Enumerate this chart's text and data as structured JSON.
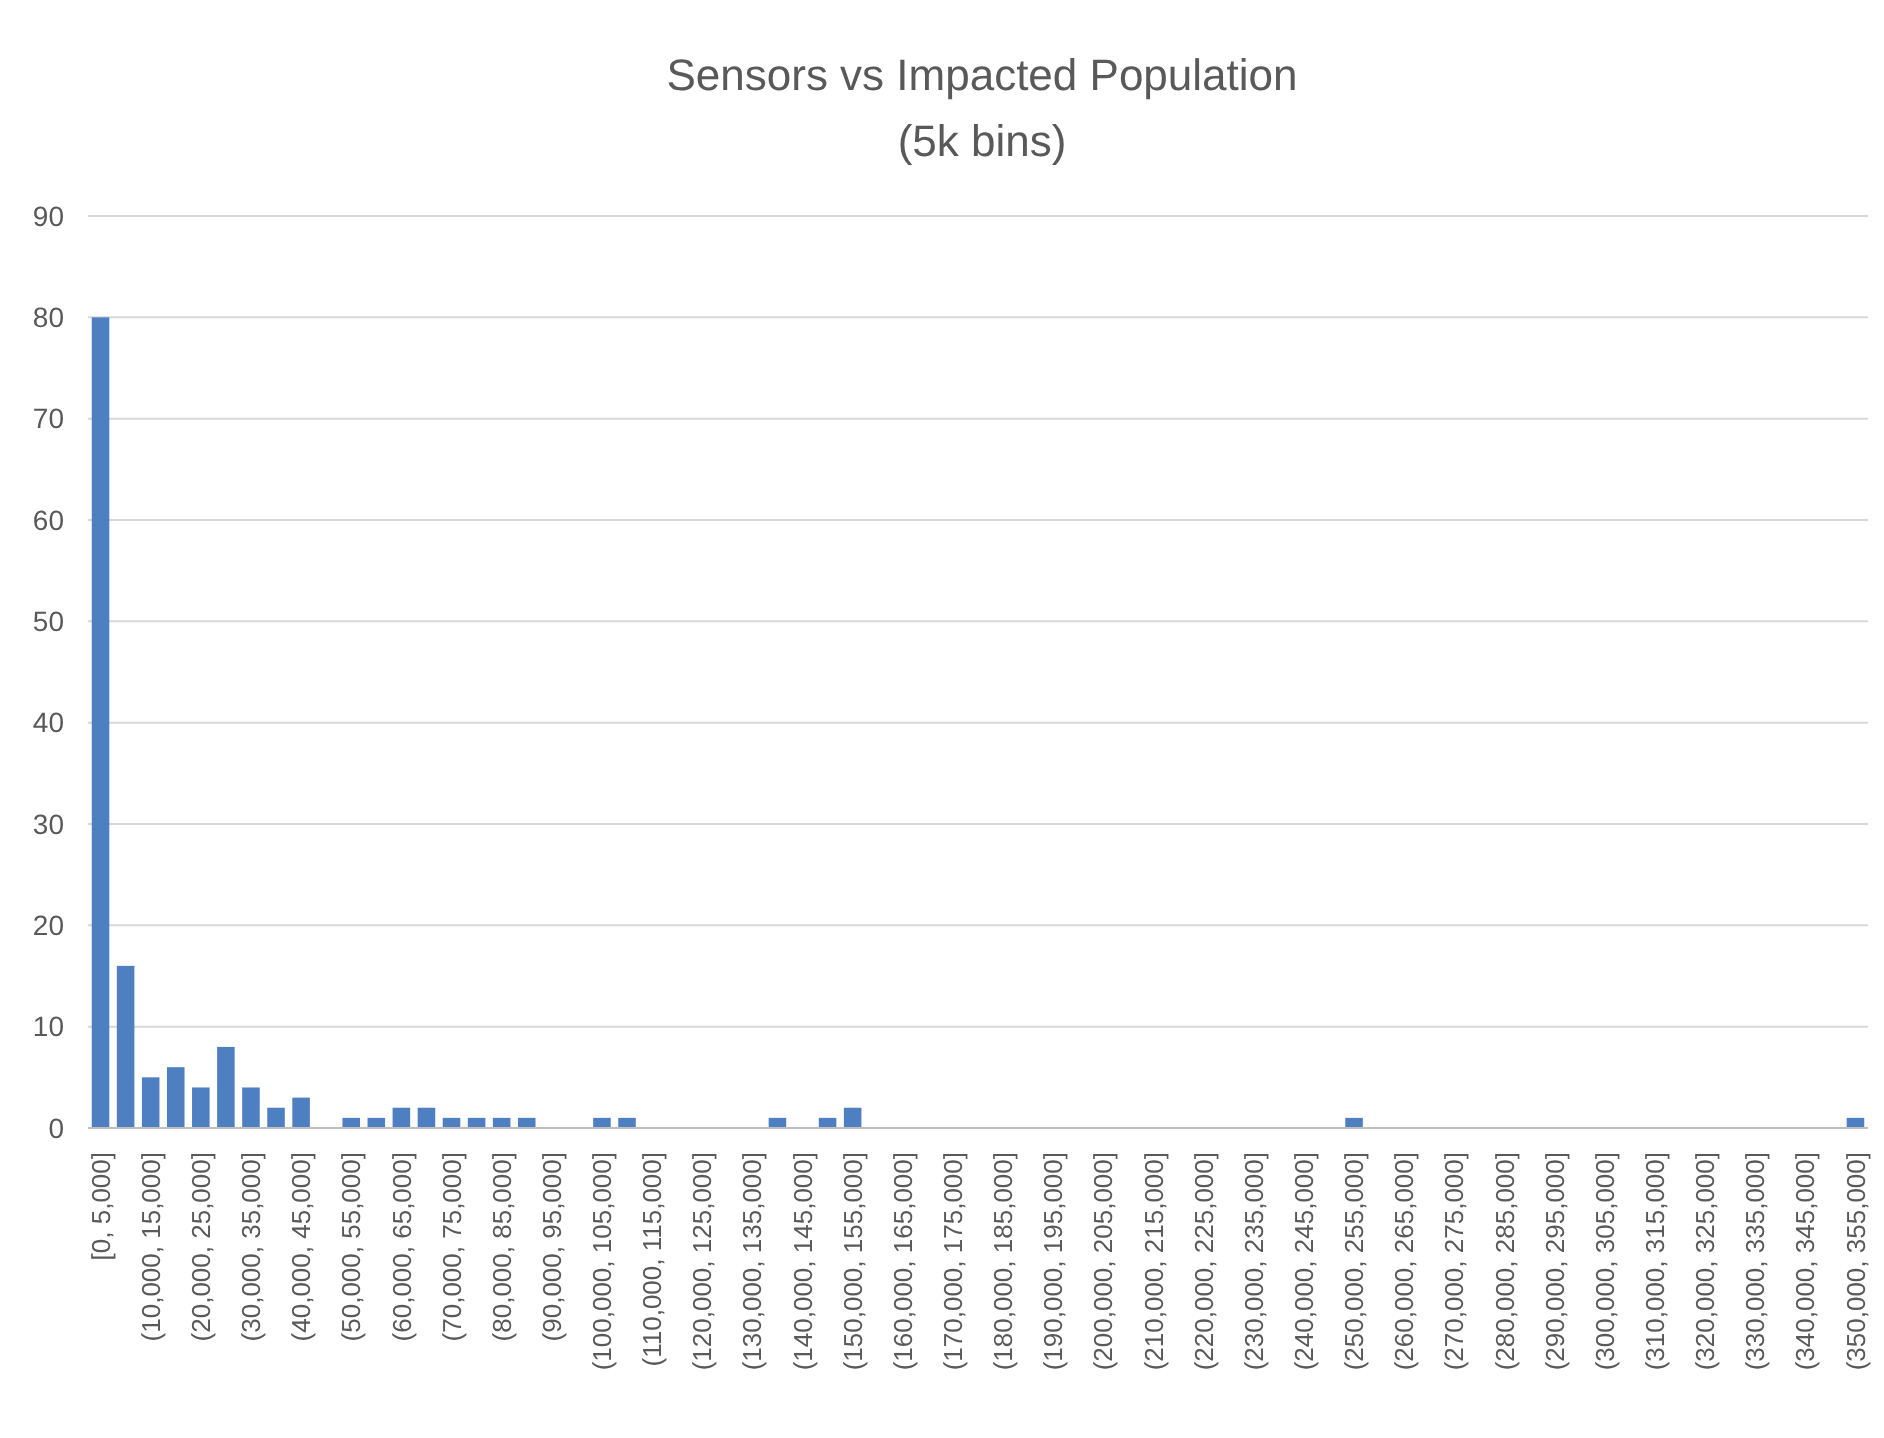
{
  "chart_data": {
    "type": "bar",
    "title": "Sensors vs Impacted Population",
    "subtitle": "(5k bins)",
    "categories": [
      "[0, 5,000]",
      null,
      "(10,000, 15,000]",
      null,
      "(20,000, 25,000]",
      null,
      "(30,000, 35,000]",
      null,
      "(40,000, 45,000]",
      null,
      "(50,000, 55,000]",
      null,
      "(60,000, 65,000]",
      null,
      "(70,000, 75,000]",
      null,
      "(80,000, 85,000]",
      null,
      "(90,000, 95,000]",
      null,
      "(100,000, 105,000]",
      null,
      "(110,000, 115,000]",
      null,
      "(120,000, 125,000]",
      null,
      "(130,000, 135,000]",
      null,
      "(140,000, 145,000]",
      null,
      "(150,000, 155,000]",
      null,
      "(160,000, 165,000]",
      null,
      "(170,000, 175,000]",
      null,
      "(180,000, 185,000]",
      null,
      "(190,000, 195,000]",
      null,
      "(200,000, 205,000]",
      null,
      "(210,000, 215,000]",
      null,
      "(220,000, 225,000]",
      null,
      "(230,000, 235,000]",
      null,
      "(240,000, 245,000]",
      null,
      "(250,000, 255,000]",
      null,
      "(260,000, 265,000]",
      null,
      "(270,000, 275,000]",
      null,
      "(280,000, 285,000]",
      null,
      "(290,000, 295,000]",
      null,
      "(300,000, 305,000]",
      null,
      "(310,000, 315,000]",
      null,
      "(320,000, 325,000]",
      null,
      "(330,000, 335,000]",
      null,
      "(340,000, 345,000]",
      null,
      "(350,000, 355,000]"
    ],
    "values": [
      80,
      16,
      5,
      6,
      4,
      8,
      4,
      2,
      3,
      0,
      1,
      1,
      2,
      2,
      1,
      1,
      1,
      1,
      0,
      0,
      1,
      1,
      0,
      0,
      0,
      0,
      0,
      1,
      0,
      1,
      2,
      0,
      0,
      0,
      0,
      0,
      0,
      0,
      0,
      0,
      0,
      0,
      0,
      0,
      0,
      0,
      0,
      0,
      0,
      0,
      1,
      0,
      0,
      0,
      0,
      0,
      0,
      0,
      0,
      0,
      0,
      0,
      0,
      0,
      0,
      0,
      0,
      0,
      0,
      0,
      1
    ],
    "color": "#4e7fc0",
    "ylim": [
      0,
      90
    ],
    "yticks": [
      0,
      10,
      20,
      30,
      40,
      50,
      60,
      70,
      80,
      90
    ],
    "grid": "y"
  }
}
